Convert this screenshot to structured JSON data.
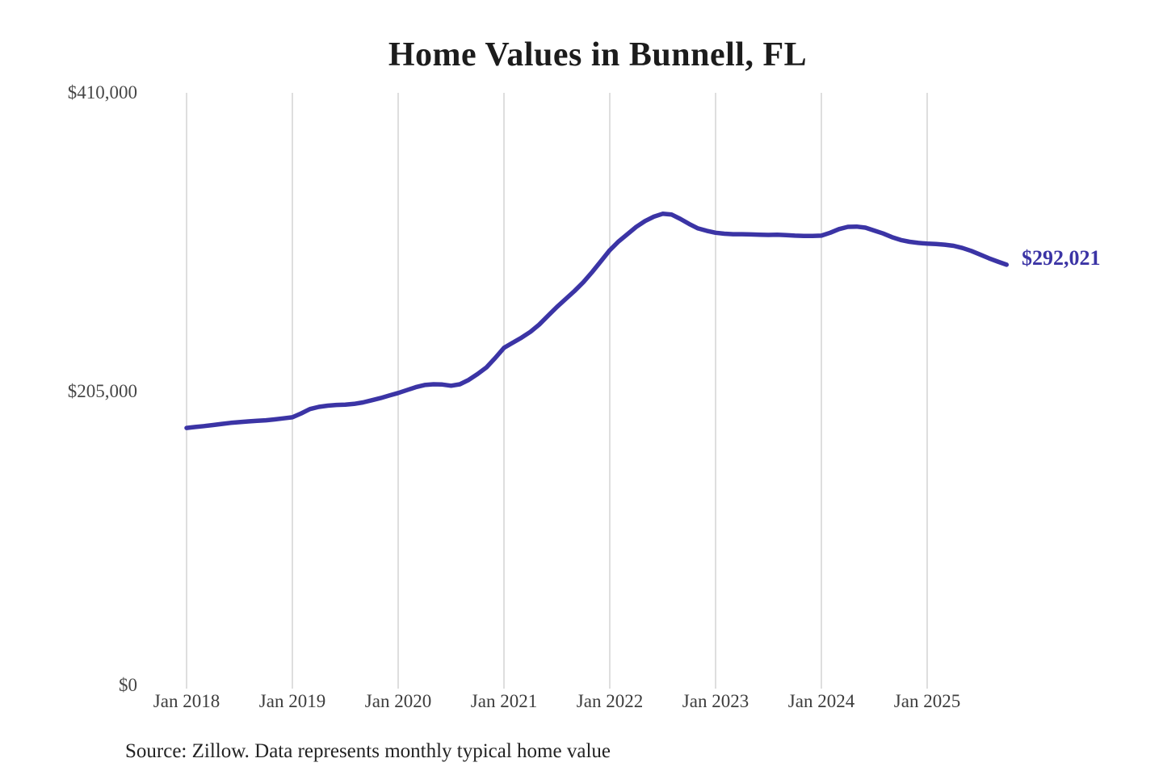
{
  "chart": {
    "title": "Home Values in Bunnell, FL",
    "end_label": "$292,021",
    "source_note": "Source: Zillow. Data represents monthly typical home value",
    "colors": {
      "line": "#3b34a5",
      "end_label": "#3b34a5",
      "grid": "#cccccc",
      "title": "#1c1c1c",
      "axis_text": "#454545",
      "background": "#ffffff"
    }
  },
  "chart_data": {
    "type": "line",
    "title": "Home Values in Bunnell, FL",
    "series_name": "Monthly typical home value",
    "source": "Zillow",
    "frequency": "monthly",
    "start_month": "2018-01",
    "end_month": "2025-10",
    "last_value": 292021,
    "last_value_label": "$292,021",
    "ylim": [
      0,
      410000
    ],
    "y_ticks": [
      0,
      205000,
      410000
    ],
    "y_tick_labels": [
      "$0",
      "$205,000",
      "$410,000"
    ],
    "x_tick_labels": [
      "Jan 2018",
      "Jan 2019",
      "Jan 2020",
      "Jan 2021",
      "Jan 2022",
      "Jan 2023",
      "Jan 2024",
      "Jan 2025"
    ],
    "grid": "vertical-only",
    "legend": "none",
    "values": [
      180000,
      180700,
      181300,
      182000,
      182800,
      183500,
      184000,
      184500,
      184900,
      185300,
      185900,
      186600,
      187300,
      190000,
      193000,
      194500,
      195300,
      195800,
      196000,
      196500,
      197500,
      199000,
      200500,
      202300,
      204000,
      206000,
      208000,
      209500,
      210000,
      209800,
      209000,
      210000,
      213000,
      217000,
      221500,
      228000,
      235000,
      238500,
      242000,
      246000,
      251000,
      257000,
      263000,
      268500,
      274000,
      280000,
      287000,
      294500,
      302000,
      308000,
      313000,
      318000,
      322000,
      325000,
      327000,
      326500,
      323500,
      320000,
      317000,
      315300,
      314000,
      313300,
      313000,
      313000,
      312800,
      312600,
      312500,
      312600,
      312300,
      312000,
      311800,
      311800,
      312000,
      314000,
      316500,
      318000,
      318200,
      317500,
      315500,
      313500,
      311000,
      309000,
      307800,
      307000,
      306500,
      306200,
      305800,
      305000,
      303500,
      301500,
      299000,
      296500,
      294200,
      292021
    ]
  }
}
